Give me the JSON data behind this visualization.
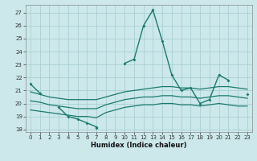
{
  "xlabel": "Humidex (Indice chaleur)",
  "background_color": "#cce8eb",
  "grid_color": "#aad0d4",
  "line_color": "#1a7a6e",
  "xlim": [
    -0.5,
    23.5
  ],
  "ylim": [
    17.8,
    27.6
  ],
  "yticks": [
    18,
    19,
    20,
    21,
    22,
    23,
    24,
    25,
    26,
    27
  ],
  "xticks": [
    0,
    1,
    2,
    3,
    4,
    5,
    6,
    7,
    8,
    9,
    10,
    11,
    12,
    13,
    14,
    15,
    16,
    17,
    18,
    19,
    20,
    21,
    22,
    23
  ],
  "x": [
    0,
    1,
    2,
    3,
    4,
    5,
    6,
    7,
    8,
    9,
    10,
    11,
    12,
    13,
    14,
    15,
    16,
    17,
    18,
    19,
    20,
    21,
    22,
    23
  ],
  "line_spike": [
    null,
    null,
    null,
    null,
    null,
    null,
    null,
    18.1,
    null,
    null,
    23.1,
    23.4,
    26.0,
    27.2,
    24.8,
    22.2,
    21.0,
    21.2,
    20.0,
    20.3,
    22.2,
    21.8,
    null,
    20.7
  ],
  "line_down": [
    21.5,
    20.8,
    null,
    19.7,
    19.0,
    18.8,
    18.5,
    18.2,
    null,
    null,
    null,
    null,
    null,
    null,
    null,
    null,
    null,
    null,
    null,
    null,
    null,
    null,
    null,
    null
  ],
  "line_upper": [
    20.9,
    20.7,
    20.5,
    20.4,
    20.3,
    20.3,
    20.3,
    20.3,
    20.5,
    20.7,
    20.9,
    21.0,
    21.1,
    21.2,
    21.3,
    21.3,
    21.2,
    21.2,
    21.1,
    21.2,
    21.3,
    21.3,
    21.2,
    21.1
  ],
  "line_lower": [
    19.5,
    19.4,
    19.3,
    19.2,
    19.1,
    19.0,
    19.0,
    18.9,
    19.3,
    19.5,
    19.7,
    19.8,
    19.9,
    19.9,
    20.0,
    20.0,
    19.9,
    19.9,
    19.8,
    19.9,
    20.0,
    19.9,
    19.8,
    19.8
  ],
  "line_mid": [
    20.2,
    20.1,
    19.9,
    19.8,
    19.7,
    19.6,
    19.6,
    19.6,
    19.9,
    20.1,
    20.3,
    20.4,
    20.5,
    20.5,
    20.6,
    20.6,
    20.5,
    20.5,
    20.4,
    20.5,
    20.6,
    20.6,
    20.5,
    20.4
  ]
}
